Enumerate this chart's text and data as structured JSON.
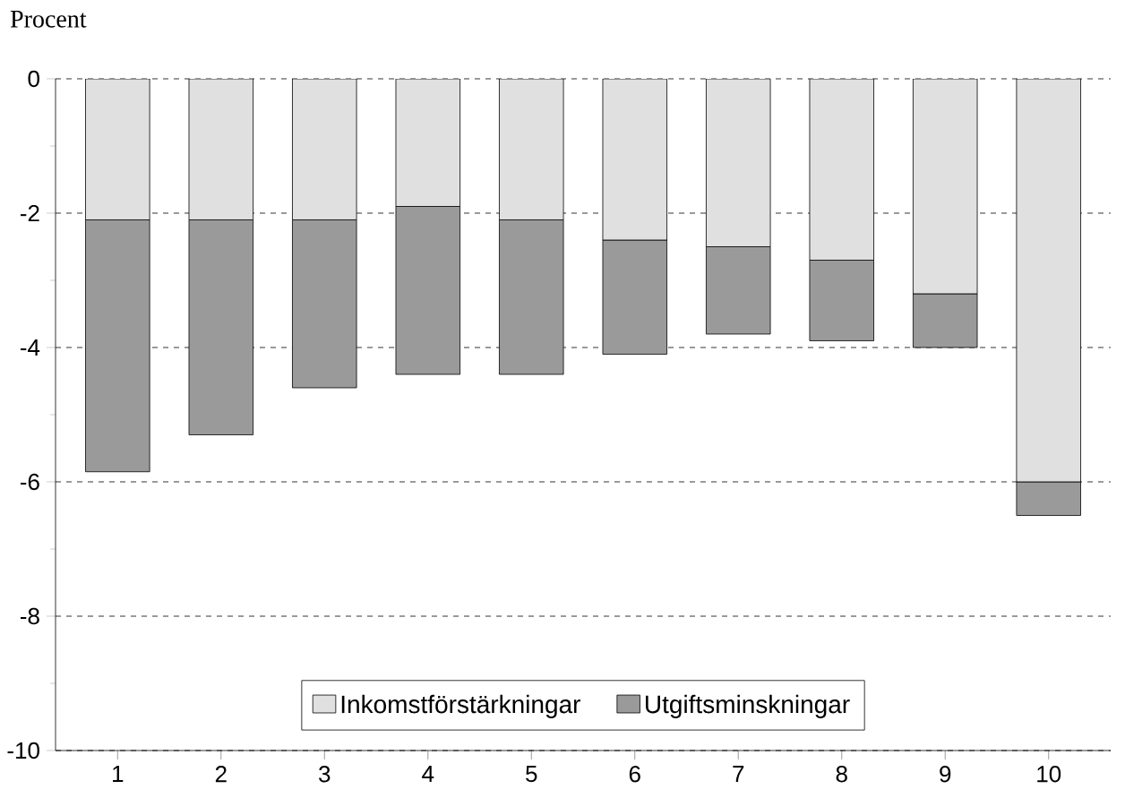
{
  "chart_data": {
    "type": "bar",
    "stacked": true,
    "ylabel": "Procent",
    "categories": [
      "1",
      "2",
      "3",
      "4",
      "5",
      "6",
      "7",
      "8",
      "9",
      "10"
    ],
    "series": [
      {
        "name": "Inkomstförstärkningar",
        "color": "#e0e0e0",
        "values": [
          -2.1,
          -2.1,
          -2.1,
          -1.9,
          -2.1,
          -2.4,
          -2.5,
          -2.7,
          -3.2,
          -6.0
        ]
      },
      {
        "name": "Utgiftsminskningar",
        "color": "#9a9a9a",
        "values": [
          -3.75,
          -3.2,
          -2.5,
          -2.5,
          -2.3,
          -1.7,
          -1.3,
          -1.2,
          -0.8,
          -0.5
        ]
      }
    ],
    "ylim": [
      -10,
      0
    ],
    "yticks": [
      -10,
      -8,
      -6,
      -4,
      -2,
      0
    ],
    "grid": "y",
    "legend": "bottom"
  }
}
